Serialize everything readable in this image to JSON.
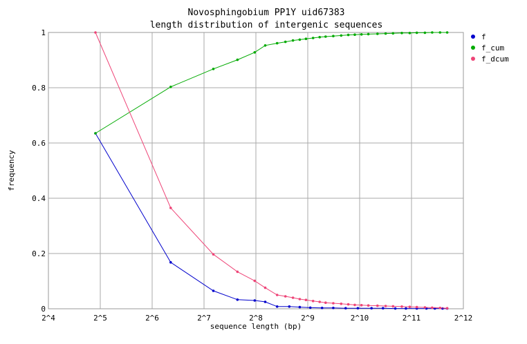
{
  "chart_data": {
    "type": "line",
    "title": "Novosphingobium PP1Y uid67383",
    "subtitle": "length distribution of intergenic sequences",
    "xlabel": "sequence length (bp)",
    "ylabel": "frequency",
    "x_scale": "log2",
    "xlim": [
      16,
      4096
    ],
    "ylim": [
      0,
      1
    ],
    "x_tick_values": [
      16,
      32,
      64,
      128,
      256,
      512,
      1024,
      2048,
      4096
    ],
    "x_tick_labels": [
      "2^4",
      "2^5",
      "2^6",
      "2^7",
      "2^8",
      "2^9",
      "2^10",
      "2^11",
      "2^12"
    ],
    "y_tick_values": [
      0,
      0.2,
      0.4,
      0.6,
      0.8,
      1
    ],
    "y_tick_labels": [
      "0",
      "0.2",
      "0.4",
      "0.6",
      "0.8",
      "1"
    ],
    "grid": true,
    "legend_position": "top-right",
    "series": [
      {
        "name": "f",
        "color": "#0000cc",
        "points": [
          [
            30,
            0.635
          ],
          [
            82,
            0.168
          ],
          [
            145,
            0.065
          ],
          [
            200,
            0.033
          ],
          [
            252,
            0.03
          ],
          [
            290,
            0.025
          ],
          [
            340,
            0.008
          ],
          [
            400,
            0.008
          ],
          [
            460,
            0.006
          ],
          [
            530,
            0.004
          ],
          [
            620,
            0.003
          ],
          [
            720,
            0.003
          ],
          [
            850,
            0.002
          ],
          [
            1000,
            0.002
          ],
          [
            1200,
            0.002
          ],
          [
            1400,
            0.002
          ],
          [
            1650,
            0.001
          ],
          [
            1900,
            0.001
          ],
          [
            2200,
            0.001
          ],
          [
            2500,
            0.001
          ],
          [
            2800,
            0.001
          ],
          [
            3100,
            0.001
          ],
          [
            3300,
            0.001
          ]
        ]
      },
      {
        "name": "f_cum",
        "color": "#00aa00",
        "points": [
          [
            30,
            0.635
          ],
          [
            82,
            0.803
          ],
          [
            145,
            0.868
          ],
          [
            200,
            0.901
          ],
          [
            252,
            0.928
          ],
          [
            290,
            0.953
          ],
          [
            340,
            0.961
          ],
          [
            380,
            0.966
          ],
          [
            420,
            0.971
          ],
          [
            460,
            0.974
          ],
          [
            500,
            0.977
          ],
          [
            550,
            0.98
          ],
          [
            600,
            0.983
          ],
          [
            650,
            0.985
          ],
          [
            720,
            0.987
          ],
          [
            800,
            0.989
          ],
          [
            880,
            0.991
          ],
          [
            960,
            0.992
          ],
          [
            1050,
            0.993
          ],
          [
            1150,
            0.994
          ],
          [
            1300,
            0.995
          ],
          [
            1450,
            0.996
          ],
          [
            1600,
            0.997
          ],
          [
            1800,
            0.998
          ],
          [
            2000,
            0.998
          ],
          [
            2200,
            0.999
          ],
          [
            2450,
            0.999
          ],
          [
            2700,
            1.0
          ],
          [
            3000,
            1.0
          ],
          [
            3300,
            1.0
          ]
        ]
      },
      {
        "name": "f_dcum",
        "color": "#ee4477",
        "points": [
          [
            30,
            1.0
          ],
          [
            82,
            0.365
          ],
          [
            145,
            0.197
          ],
          [
            200,
            0.134
          ],
          [
            252,
            0.101
          ],
          [
            290,
            0.076
          ],
          [
            340,
            0.05
          ],
          [
            380,
            0.045
          ],
          [
            420,
            0.04
          ],
          [
            460,
            0.035
          ],
          [
            500,
            0.032
          ],
          [
            550,
            0.028
          ],
          [
            600,
            0.025
          ],
          [
            650,
            0.022
          ],
          [
            720,
            0.02
          ],
          [
            800,
            0.018
          ],
          [
            880,
            0.016
          ],
          [
            960,
            0.014
          ],
          [
            1050,
            0.013
          ],
          [
            1150,
            0.012
          ],
          [
            1300,
            0.011
          ],
          [
            1450,
            0.01
          ],
          [
            1600,
            0.009
          ],
          [
            1800,
            0.008
          ],
          [
            2000,
            0.007
          ],
          [
            2200,
            0.006
          ],
          [
            2450,
            0.005
          ],
          [
            2700,
            0.004
          ],
          [
            3000,
            0.003
          ],
          [
            3300,
            0.002
          ]
        ]
      }
    ]
  }
}
